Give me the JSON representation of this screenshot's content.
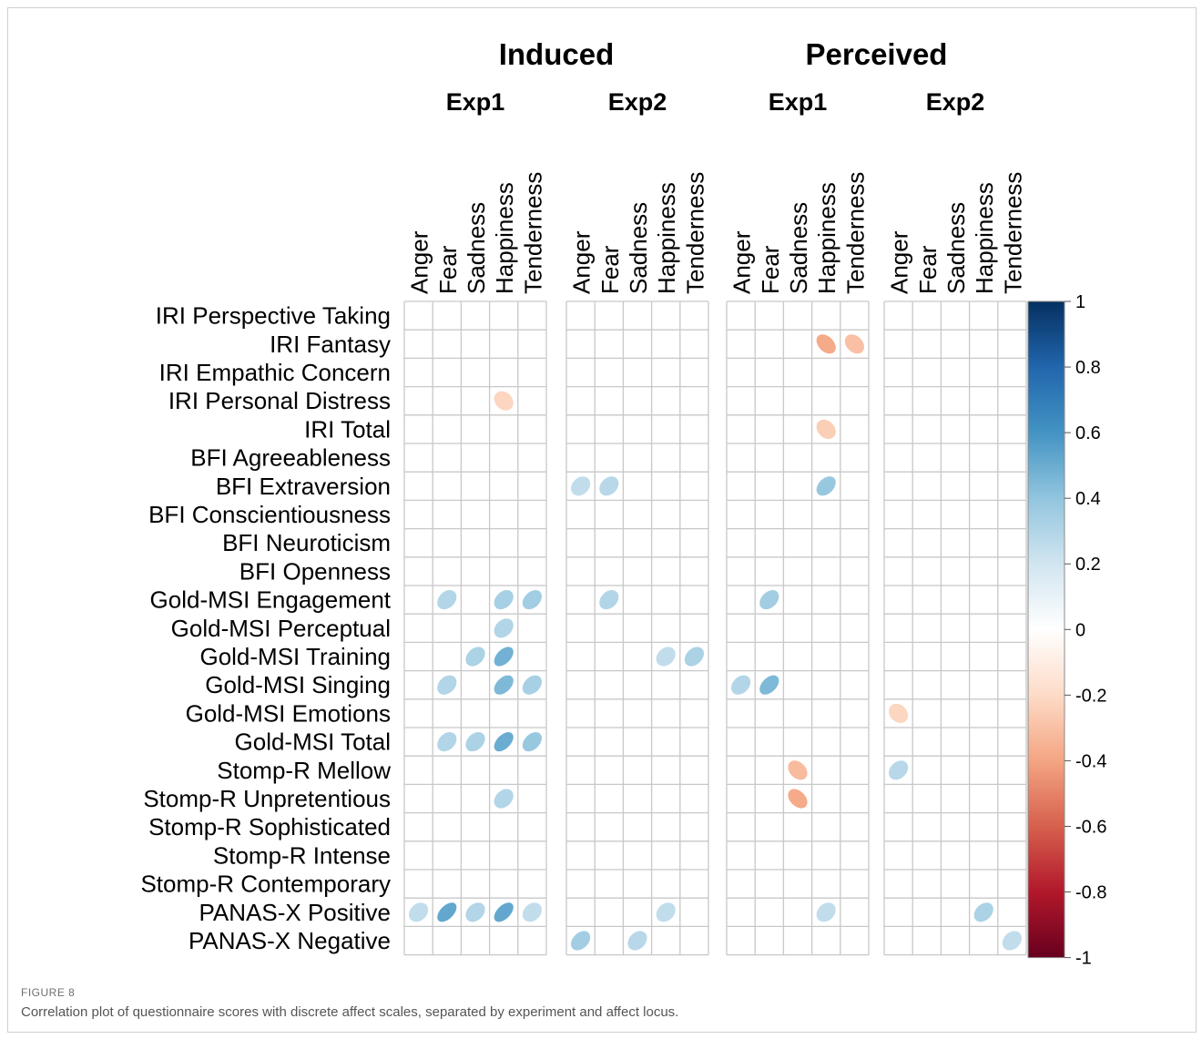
{
  "figure_label": "FIGURE 8",
  "caption": "Correlation plot of questionnaire scores with discrete affect scales, separated by experiment and affect locus.",
  "colors": {
    "grid": "#c8c8c8",
    "positive": "#053061",
    "negative": "#67001f",
    "text": "#000000"
  },
  "chart_data": {
    "type": "heatmap",
    "groups": [
      "Induced",
      "Perceived"
    ],
    "experiments": [
      "Exp1",
      "Exp2"
    ],
    "columns": [
      "Anger",
      "Fear",
      "Sadness",
      "Happiness",
      "Tenderness"
    ],
    "rows": [
      "IRI Perspective Taking",
      "IRI Fantasy",
      "IRI Empathic Concern",
      "IRI Personal Distress",
      "IRI Total",
      "BFI Agreeableness",
      "BFI Extraversion",
      "BFI Conscientiousness",
      "BFI Neuroticism",
      "BFI Openness",
      "Gold-MSI Engagement",
      "Gold-MSI Perceptual",
      "Gold-MSI Training",
      "Gold-MSI Singing",
      "Gold-MSI Emotions",
      "Gold-MSI Total",
      "Stomp-R Mellow",
      "Stomp-R Unpretentious",
      "Stomp-R Sophisticated",
      "Stomp-R Intense",
      "Stomp-R Contemporary",
      "PANAS-X Positive",
      "PANAS-X Negative"
    ],
    "panels": [
      {
        "group": "Induced",
        "experiment": "Exp1"
      },
      {
        "group": "Induced",
        "experiment": "Exp2"
      },
      {
        "group": "Perceived",
        "experiment": "Exp1"
      },
      {
        "group": "Perceived",
        "experiment": "Exp2"
      }
    ],
    "cells": [
      {
        "panel": 0,
        "row": "IRI Personal Distress",
        "col": "Happiness",
        "value": -0.22
      },
      {
        "panel": 0,
        "row": "Gold-MSI Engagement",
        "col": "Fear",
        "value": 0.3
      },
      {
        "panel": 0,
        "row": "Gold-MSI Engagement",
        "col": "Happiness",
        "value": 0.33
      },
      {
        "panel": 0,
        "row": "Gold-MSI Engagement",
        "col": "Tenderness",
        "value": 0.35
      },
      {
        "panel": 0,
        "row": "Gold-MSI Perceptual",
        "col": "Happiness",
        "value": 0.3
      },
      {
        "panel": 0,
        "row": "Gold-MSI Training",
        "col": "Sadness",
        "value": 0.32
      },
      {
        "panel": 0,
        "row": "Gold-MSI Training",
        "col": "Happiness",
        "value": 0.48
      },
      {
        "panel": 0,
        "row": "Gold-MSI Singing",
        "col": "Fear",
        "value": 0.3
      },
      {
        "panel": 0,
        "row": "Gold-MSI Singing",
        "col": "Happiness",
        "value": 0.45
      },
      {
        "panel": 0,
        "row": "Gold-MSI Singing",
        "col": "Tenderness",
        "value": 0.33
      },
      {
        "panel": 0,
        "row": "Gold-MSI Total",
        "col": "Fear",
        "value": 0.3
      },
      {
        "panel": 0,
        "row": "Gold-MSI Total",
        "col": "Sadness",
        "value": 0.32
      },
      {
        "panel": 0,
        "row": "Gold-MSI Total",
        "col": "Happiness",
        "value": 0.5
      },
      {
        "panel": 0,
        "row": "Gold-MSI Total",
        "col": "Tenderness",
        "value": 0.38
      },
      {
        "panel": 0,
        "row": "Stomp-R Unpretentious",
        "col": "Happiness",
        "value": 0.3
      },
      {
        "panel": 0,
        "row": "PANAS-X Positive",
        "col": "Anger",
        "value": 0.25
      },
      {
        "panel": 0,
        "row": "PANAS-X Positive",
        "col": "Fear",
        "value": 0.52
      },
      {
        "panel": 0,
        "row": "PANAS-X Positive",
        "col": "Sadness",
        "value": 0.3
      },
      {
        "panel": 0,
        "row": "PANAS-X Positive",
        "col": "Happiness",
        "value": 0.52
      },
      {
        "panel": 0,
        "row": "PANAS-X Positive",
        "col": "Tenderness",
        "value": 0.25
      },
      {
        "panel": 1,
        "row": "BFI Extraversion",
        "col": "Anger",
        "value": 0.25
      },
      {
        "panel": 1,
        "row": "BFI Extraversion",
        "col": "Fear",
        "value": 0.28
      },
      {
        "panel": 1,
        "row": "Gold-MSI Engagement",
        "col": "Fear",
        "value": 0.3
      },
      {
        "panel": 1,
        "row": "Gold-MSI Training",
        "col": "Happiness",
        "value": 0.25
      },
      {
        "panel": 1,
        "row": "Gold-MSI Training",
        "col": "Tenderness",
        "value": 0.32
      },
      {
        "panel": 1,
        "row": "PANAS-X Positive",
        "col": "Happiness",
        "value": 0.25
      },
      {
        "panel": 1,
        "row": "PANAS-X Negative",
        "col": "Anger",
        "value": 0.35
      },
      {
        "panel": 1,
        "row": "PANAS-X Negative",
        "col": "Sadness",
        "value": 0.28
      },
      {
        "panel": 2,
        "row": "IRI Fantasy",
        "col": "Happiness",
        "value": -0.38
      },
      {
        "panel": 2,
        "row": "IRI Fantasy",
        "col": "Tenderness",
        "value": -0.3
      },
      {
        "panel": 2,
        "row": "IRI Total",
        "col": "Happiness",
        "value": -0.25
      },
      {
        "panel": 2,
        "row": "BFI Extraversion",
        "col": "Happiness",
        "value": 0.38
      },
      {
        "panel": 2,
        "row": "Gold-MSI Engagement",
        "col": "Fear",
        "value": 0.35
      },
      {
        "panel": 2,
        "row": "Gold-MSI Singing",
        "col": "Anger",
        "value": 0.3
      },
      {
        "panel": 2,
        "row": "Gold-MSI Singing",
        "col": "Fear",
        "value": 0.45
      },
      {
        "panel": 2,
        "row": "Stomp-R Mellow",
        "col": "Sadness",
        "value": -0.32
      },
      {
        "panel": 2,
        "row": "Stomp-R Unpretentious",
        "col": "Sadness",
        "value": -0.38
      },
      {
        "panel": 2,
        "row": "PANAS-X Positive",
        "col": "Happiness",
        "value": 0.25
      },
      {
        "panel": 3,
        "row": "Gold-MSI Emotions",
        "col": "Anger",
        "value": -0.22
      },
      {
        "panel": 3,
        "row": "Stomp-R Mellow",
        "col": "Anger",
        "value": 0.28
      },
      {
        "panel": 3,
        "row": "PANAS-X Positive",
        "col": "Happiness",
        "value": 0.32
      },
      {
        "panel": 3,
        "row": "PANAS-X Negative",
        "col": "Tenderness",
        "value": 0.25
      }
    ],
    "colorbar": {
      "range": [
        -1,
        1
      ],
      "ticks": [
        {
          "value": 1,
          "label": "1"
        },
        {
          "value": 0.8,
          "label": "0.8"
        },
        {
          "value": 0.6,
          "label": "0.6"
        },
        {
          "value": 0.4,
          "label": "0.4"
        },
        {
          "value": 0.2,
          "label": "0.2"
        },
        {
          "value": 0,
          "label": "0"
        },
        {
          "value": -0.2,
          "label": "-0.2"
        },
        {
          "value": -0.4,
          "label": "-0.4"
        },
        {
          "value": -0.6,
          "label": "-0.6"
        },
        {
          "value": -0.8,
          "label": "-0.8"
        },
        {
          "value": -1,
          "label": "-1"
        }
      ]
    }
  }
}
